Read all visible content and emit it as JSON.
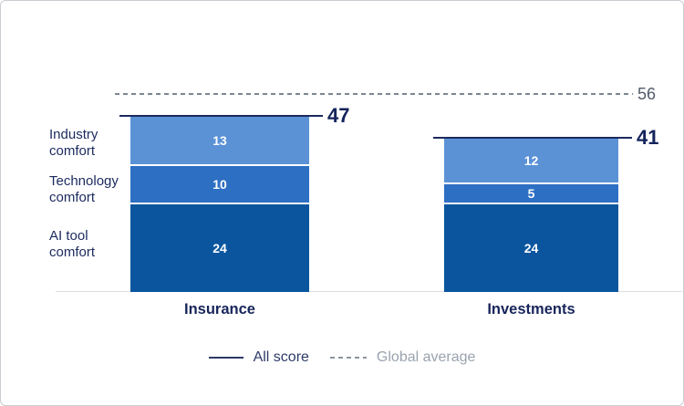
{
  "chart_data": {
    "type": "stacked-bar",
    "title": "",
    "categories": [
      "Insurance",
      "Investments"
    ],
    "series": [
      {
        "name": "Industry comfort",
        "values": [
          13,
          12
        ],
        "color": "#5b92d6"
      },
      {
        "name": "Technology comfort",
        "values": [
          10,
          5
        ],
        "color": "#2d6fc3"
      },
      {
        "name": "AI tool comfort",
        "values": [
          24,
          24
        ],
        "color": "#0a559e"
      }
    ],
    "totals": [
      47,
      41
    ],
    "global_average": 56,
    "legend": [
      {
        "label": "All score",
        "style": "solid",
        "color": "#2d3a66"
      },
      {
        "label": "Global average",
        "style": "dashed",
        "color": "#8b939e"
      }
    ],
    "colors": {
      "accent_navy": "#1c2a5e",
      "axis_gray": "#dadde2",
      "dash_gray": "#7d8692",
      "avg_label_gray": "#515c69"
    }
  }
}
